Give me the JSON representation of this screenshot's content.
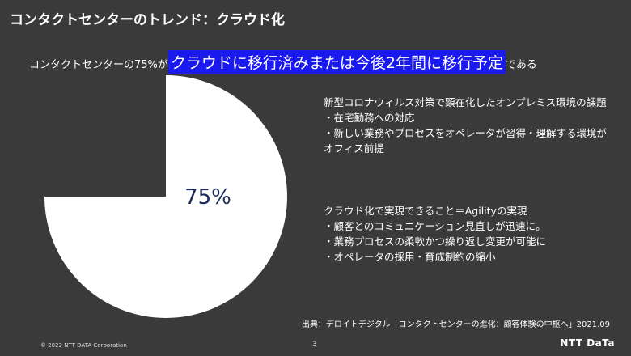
{
  "page": {
    "title": "コンタクトセンターのトレンド：クラウド化",
    "headline_pre": "コンタクトセンターの75%が",
    "headline_highlight": "クラウドに移行済みまたは今後2年間に移行予定",
    "headline_post": "である",
    "block1": [
      "新型コロナウィルス対策で顕在化したオンプレミス環境の課題",
      "・在宅勤務への対応",
      "・新しい業務やプロセスをオペレータが習得・理解する環境が",
      "オフィス前提"
    ],
    "block2": [
      "クラウド化で実現できること＝Agilityの実現",
      "・顧客とのコミュニケーション見直しが迅速に。",
      "・業務プロセスの柔軟かつ繰り返し変更が可能に",
      "・オペレータの採用・育成制約の縮小"
    ],
    "source": "出典：デロイトデジタル「コンタクトセンターの進化：顧客体験の中枢へ」2021.09",
    "copyright": "© 2022 NTT DATA Corporation",
    "page_number": "3",
    "logo_text": "NTT DaTa",
    "colors": {
      "background": "#3a3a3a",
      "pie_fill": "#ffffff",
      "highlight": "#1a1aef",
      "pie_label": "#1a2a5a"
    }
  },
  "chart_data": {
    "type": "pie",
    "title": "",
    "slices": [
      {
        "value": 75,
        "label": "75%",
        "color": "#ffffff"
      },
      {
        "value": 25,
        "label": "",
        "color": "#3a3a3a"
      }
    ],
    "start_angle_deg": 0,
    "direction": "clockwise"
  }
}
